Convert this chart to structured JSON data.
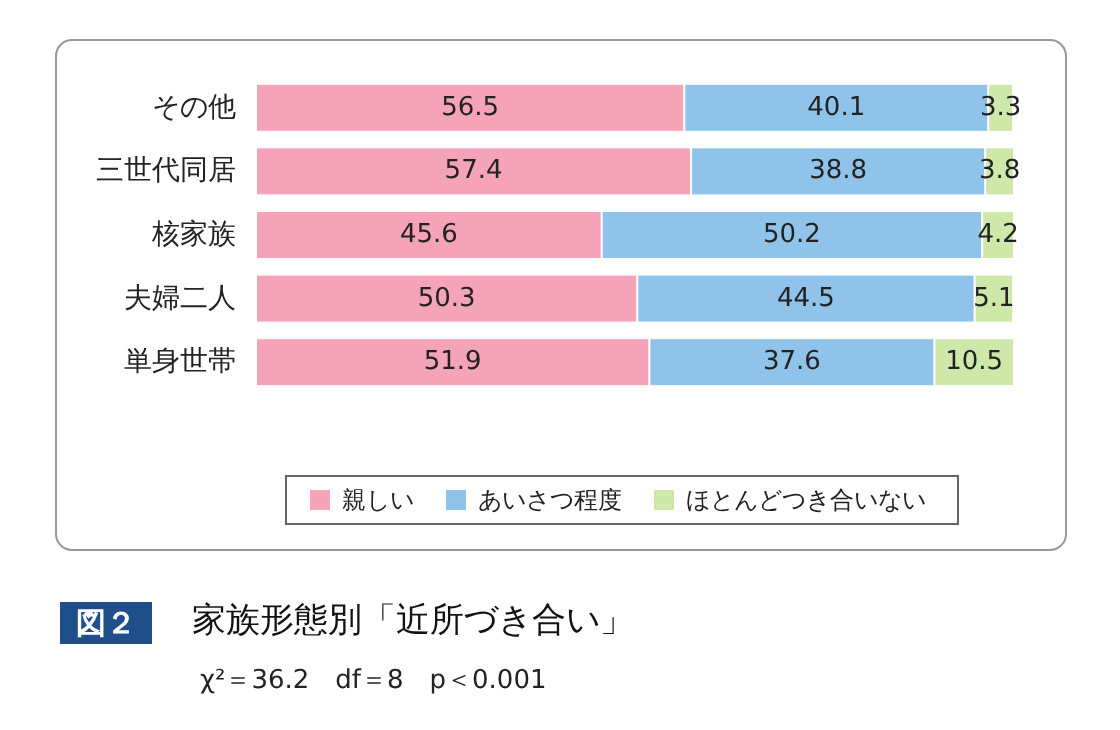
{
  "chart_data": {
    "type": "bar",
    "orientation": "horizontal",
    "stacked": true,
    "title": "家族形態別「近所づき合い」",
    "annotations": [
      "図２",
      "χ²＝36.2　df＝8　p＜0.001"
    ],
    "categories": [
      "その他",
      "三世代同居",
      "核家族",
      "夫婦二人",
      "単身世帯"
    ],
    "series": [
      {
        "name": "親しい",
        "color": "#f5a3b8",
        "values": [
          56.5,
          57.4,
          45.6,
          50.3,
          51.9
        ]
      },
      {
        "name": "あいさつ程度",
        "color": "#8fc3ea",
        "values": [
          40.1,
          38.8,
          50.2,
          44.5,
          37.6
        ]
      },
      {
        "name": "ほとんどつき合いない",
        "color": "#cde8a8",
        "values": [
          3.3,
          3.8,
          4.2,
          5.1,
          10.5
        ]
      }
    ],
    "xlim": [
      0,
      100
    ],
    "tick_labels": "y",
    "data_labels": true,
    "legend": "bottom"
  }
}
